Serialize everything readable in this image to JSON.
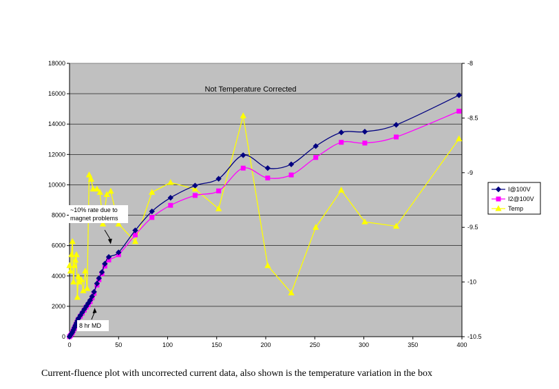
{
  "chart_data": {
    "type": "line",
    "title": "Not Temperature Corrected",
    "xlim": [
      0,
      400
    ],
    "x_ticks": [
      0,
      50,
      100,
      150,
      200,
      250,
      300,
      350,
      400
    ],
    "ylim_left": [
      0,
      18000
    ],
    "y_ticks_left": [
      0,
      2000,
      4000,
      6000,
      8000,
      10000,
      12000,
      14000,
      16000,
      18000
    ],
    "ylim_right": [
      -10.5,
      -8
    ],
    "y_ticks_right": [
      -8,
      -8.5,
      -9,
      -9.5,
      -10,
      -10.5
    ],
    "grid": "horizontal",
    "plot_background": "#c0c0c0",
    "legend_position": "right",
    "series": [
      {
        "name": "I@100V",
        "axis": "left",
        "color": "#000080",
        "marker": "diamond",
        "points": [
          [
            0,
            0
          ],
          [
            1,
            100
          ],
          [
            2,
            200
          ],
          [
            3,
            300
          ],
          [
            4,
            450
          ],
          [
            5,
            600
          ],
          [
            6,
            750
          ],
          [
            7,
            900
          ],
          [
            8,
            1050
          ],
          [
            9,
            1200
          ],
          [
            11,
            1400
          ],
          [
            13,
            1600
          ],
          [
            15,
            1800
          ],
          [
            17,
            2000
          ],
          [
            19,
            2200
          ],
          [
            21,
            2400
          ],
          [
            23,
            2650
          ],
          [
            25,
            2950
          ],
          [
            28,
            3500
          ],
          [
            30,
            3850
          ],
          [
            33,
            4250
          ],
          [
            36,
            4800
          ],
          [
            40,
            5250
          ],
          [
            50,
            5550
          ],
          [
            67,
            7000
          ],
          [
            84,
            8250
          ],
          [
            103,
            9150
          ],
          [
            128,
            9950
          ],
          [
            152,
            10400
          ],
          [
            177,
            11950
          ],
          [
            202,
            11100
          ],
          [
            226,
            11350
          ],
          [
            251,
            12550
          ],
          [
            277,
            13450
          ],
          [
            301,
            13500
          ],
          [
            333,
            13950
          ],
          [
            397,
            15900
          ]
        ]
      },
      {
        "name": "I2@100V",
        "axis": "left",
        "color": "#ff00ff",
        "marker": "square",
        "points": [
          [
            0,
            0
          ],
          [
            1,
            80
          ],
          [
            2,
            180
          ],
          [
            3,
            280
          ],
          [
            4,
            420
          ],
          [
            5,
            560
          ],
          [
            6,
            700
          ],
          [
            7,
            850
          ],
          [
            8,
            1000
          ],
          [
            9,
            1150
          ],
          [
            11,
            1350
          ],
          [
            13,
            1550
          ],
          [
            15,
            1750
          ],
          [
            17,
            1950
          ],
          [
            19,
            2100
          ],
          [
            21,
            2300
          ],
          [
            23,
            2550
          ],
          [
            25,
            2850
          ],
          [
            28,
            3400
          ],
          [
            30,
            3750
          ],
          [
            33,
            4150
          ],
          [
            36,
            4650
          ],
          [
            40,
            5050
          ],
          [
            50,
            5400
          ],
          [
            67,
            6700
          ],
          [
            84,
            7850
          ],
          [
            103,
            8650
          ],
          [
            128,
            9300
          ],
          [
            152,
            9600
          ],
          [
            177,
            11100
          ],
          [
            202,
            10450
          ],
          [
            226,
            10650
          ],
          [
            251,
            11800
          ],
          [
            277,
            12800
          ],
          [
            301,
            12750
          ],
          [
            333,
            13150
          ],
          [
            397,
            14850
          ]
        ]
      },
      {
        "name": "Temp",
        "axis": "right",
        "color": "#ffff00",
        "marker": "triangle",
        "points": [
          [
            0,
            -9.85
          ],
          [
            1,
            -9.9
          ],
          [
            2,
            -9.75
          ],
          [
            3,
            -9.63
          ],
          [
            4,
            -10
          ],
          [
            5,
            -9.85
          ],
          [
            6,
            -9.8
          ],
          [
            7,
            -9.75
          ],
          [
            8,
            -10.14
          ],
          [
            9,
            -9.95
          ],
          [
            10,
            -10
          ],
          [
            12,
            -9.98
          ],
          [
            14,
            -10.08
          ],
          [
            16,
            -9.9
          ],
          [
            18,
            -10.06
          ],
          [
            20,
            -9.02
          ],
          [
            22,
            -9.06
          ],
          [
            24,
            -9.15
          ],
          [
            28,
            -9.15
          ],
          [
            31,
            -9.18
          ],
          [
            34,
            -9.47
          ],
          [
            38,
            -9.2
          ],
          [
            42,
            -9.17
          ],
          [
            50,
            -9.47
          ],
          [
            67,
            -9.63
          ],
          [
            84,
            -9.18
          ],
          [
            103,
            -9.09
          ],
          [
            128,
            -9.15
          ],
          [
            152,
            -9.33
          ],
          [
            177,
            -8.48
          ],
          [
            202,
            -9.85
          ],
          [
            226,
            -10.1
          ],
          [
            251,
            -9.5
          ],
          [
            277,
            -9.16
          ],
          [
            301,
            -9.45
          ],
          [
            333,
            -9.49
          ],
          [
            397,
            -8.69
          ]
        ]
      }
    ],
    "annotations": [
      {
        "text_lines": [
          "~10% rate due to",
          "magnet problems"
        ],
        "arrow_to": [
          42,
          6000
        ]
      },
      {
        "text_lines": [
          "8 hr MD"
        ],
        "arrow_to": [
          20,
          1900
        ]
      }
    ]
  },
  "caption": "Current-fluence plot with uncorrected current data, also shown is the temperature variation in the box"
}
